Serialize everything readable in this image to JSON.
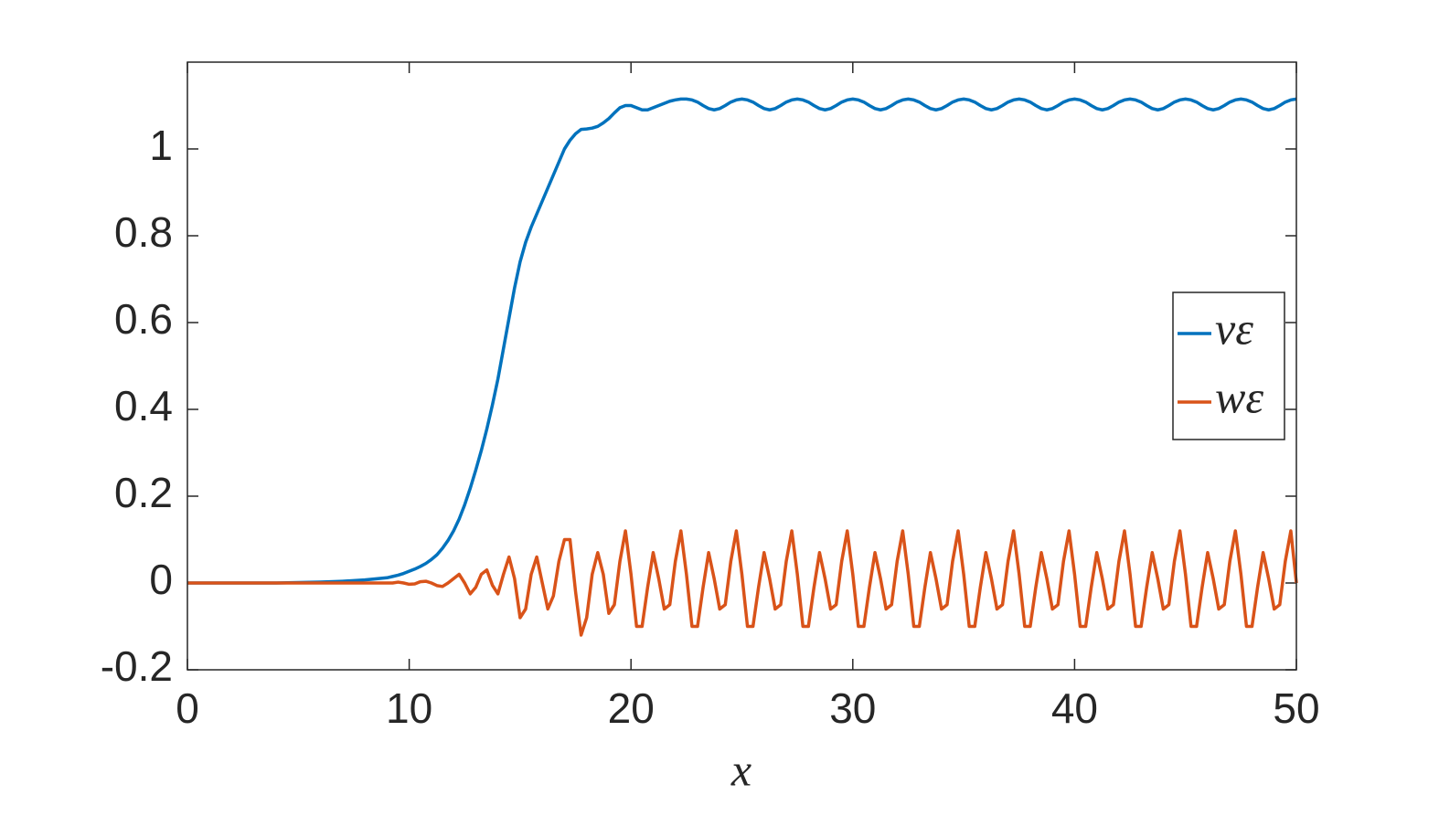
{
  "chart_data": {
    "type": "line",
    "xlabel": "x",
    "xlim": [
      0,
      50
    ],
    "xticks": [
      0,
      10,
      20,
      30,
      40,
      50
    ],
    "ylim": [
      -0.2,
      1.2
    ],
    "yticks": [
      -0.2,
      0,
      0.2,
      0.4,
      0.6,
      0.8,
      1
    ],
    "legend": "right",
    "box": true,
    "x": [
      0,
      1,
      2,
      3,
      4,
      5,
      6,
      7,
      8,
      9,
      9.25,
      9.5,
      9.75,
      10,
      10.25,
      10.5,
      10.75,
      11,
      11.25,
      11.5,
      11.75,
      12,
      12.25,
      12.5,
      12.75,
      13,
      13.25,
      13.5,
      13.75,
      14,
      14.25,
      14.5,
      14.75,
      15,
      15.25,
      15.5,
      15.75,
      16,
      16.25,
      16.5,
      16.75,
      17,
      17.25,
      17.5,
      17.75,
      18,
      18.25,
      18.5,
      18.75,
      19,
      19.25,
      19.5,
      19.75,
      20,
      20.25,
      20.5,
      20.75,
      21,
      21.25,
      21.5,
      21.75,
      22,
      22.25,
      22.5,
      22.75,
      23,
      23.25,
      23.5,
      23.75,
      24,
      24.25,
      24.5,
      24.75,
      25,
      25.25,
      25.5,
      25.75,
      26,
      26.25,
      26.5,
      26.75,
      27,
      27.25,
      27.5,
      27.75,
      28,
      28.25,
      28.5,
      28.75,
      29,
      29.25,
      29.5,
      29.75,
      30,
      30.25,
      30.5,
      30.75,
      31,
      31.25,
      31.5,
      31.75,
      32,
      32.25,
      32.5,
      32.75,
      33,
      33.25,
      33.5,
      33.75,
      34,
      34.25,
      34.5,
      34.75,
      35,
      35.25,
      35.5,
      35.75,
      36,
      36.25,
      36.5,
      36.75,
      37,
      37.25,
      37.5,
      37.75,
      38,
      38.25,
      38.5,
      38.75,
      39,
      39.25,
      39.5,
      39.75,
      40,
      40.25,
      40.5,
      40.75,
      41,
      41.25,
      41.5,
      41.75,
      42,
      42.25,
      42.5,
      42.75,
      43,
      43.25,
      43.5,
      43.75,
      44,
      44.25,
      44.5,
      44.75,
      45,
      45.25,
      45.5,
      45.75,
      46,
      46.25,
      46.5,
      46.75,
      47,
      47.25,
      47.5,
      47.75,
      48,
      48.25,
      48.5,
      48.75,
      49,
      49.25,
      49.5,
      49.75,
      50
    ],
    "series": [
      {
        "name": "vε",
        "color": "#0072BD",
        "values": [
          0,
          0,
          0,
          0,
          0,
          0.001,
          0.002,
          0.004,
          0.007,
          0.012,
          0.015,
          0.018,
          0.022,
          0.027,
          0.032,
          0.038,
          0.045,
          0.054,
          0.065,
          0.08,
          0.098,
          0.12,
          0.147,
          0.18,
          0.218,
          0.26,
          0.305,
          0.355,
          0.41,
          0.47,
          0.54,
          0.61,
          0.68,
          0.74,
          0.785,
          0.82,
          0.85,
          0.88,
          0.91,
          0.94,
          0.97,
          1.0,
          1.02,
          1.035,
          1.045,
          1.046,
          1.048,
          1.052,
          1.06,
          1.07,
          1.083,
          1.095,
          1.1,
          1.1,
          1.095,
          1.09,
          1.09,
          1.095,
          1.1,
          1.105,
          1.11,
          1.113,
          1.115,
          1.115,
          1.113,
          1.108,
          1.1,
          1.093,
          1.09,
          1.093,
          1.1,
          1.108,
          1.113,
          1.115,
          1.113,
          1.108,
          1.1,
          1.093,
          1.09,
          1.093,
          1.1,
          1.108,
          1.113,
          1.115,
          1.113,
          1.108,
          1.1,
          1.093,
          1.09,
          1.093,
          1.1,
          1.108,
          1.113,
          1.115,
          1.113,
          1.108,
          1.1,
          1.093,
          1.09,
          1.093,
          1.1,
          1.108,
          1.113,
          1.115,
          1.113,
          1.108,
          1.1,
          1.093,
          1.09,
          1.093,
          1.1,
          1.108,
          1.113,
          1.115,
          1.113,
          1.108,
          1.1,
          1.093,
          1.09,
          1.093,
          1.1,
          1.108,
          1.113,
          1.115,
          1.113,
          1.108,
          1.1,
          1.093,
          1.09,
          1.093,
          1.1,
          1.108,
          1.113,
          1.115,
          1.113,
          1.108,
          1.1,
          1.093,
          1.09,
          1.093,
          1.1,
          1.108,
          1.113,
          1.115,
          1.113,
          1.108,
          1.1,
          1.093,
          1.09,
          1.093,
          1.1,
          1.108,
          1.113,
          1.115,
          1.113,
          1.108,
          1.1,
          1.093,
          1.09,
          1.093,
          1.1,
          1.108,
          1.113,
          1.115,
          1.113,
          1.108,
          1.1,
          1.093,
          1.09,
          1.093,
          1.1,
          1.108,
          1.113,
          1.115
        ]
      },
      {
        "name": "wε",
        "color": "#D95319",
        "values": [
          0,
          0,
          0,
          0,
          0,
          0,
          0,
          0,
          0,
          0,
          0,
          0.002,
          0,
          -0.003,
          -0.002,
          0.003,
          0.004,
          0,
          -0.006,
          -0.008,
          0,
          0.01,
          0.02,
          0,
          -0.025,
          -0.01,
          0.02,
          0.03,
          -0.005,
          -0.025,
          0.02,
          0.06,
          0.01,
          -0.08,
          -0.06,
          0.02,
          0.06,
          0,
          -0.06,
          -0.03,
          0.05,
          0.1,
          0.1,
          -0.02,
          -0.12,
          -0.08,
          0.02,
          0.07,
          0.02,
          -0.07,
          -0.05,
          0.05,
          0.12,
          0.02,
          -0.1,
          -0.1,
          -0.01,
          0.07,
          0.01,
          -0.06,
          -0.05,
          0.05,
          0.12,
          0.02,
          -0.1,
          -0.1,
          -0.01,
          0.07,
          0.01,
          -0.06,
          -0.05,
          0.05,
          0.12,
          0.02,
          -0.1,
          -0.1,
          -0.01,
          0.07,
          0.01,
          -0.06,
          -0.05,
          0.05,
          0.12,
          0.02,
          -0.1,
          -0.1,
          -0.01,
          0.07,
          0.01,
          -0.06,
          -0.05,
          0.05,
          0.12,
          0.02,
          -0.1,
          -0.1,
          -0.01,
          0.07,
          0.01,
          -0.06,
          -0.05,
          0.05,
          0.12,
          0.02,
          -0.1,
          -0.1,
          -0.01,
          0.07,
          0.01,
          -0.06,
          -0.05,
          0.05,
          0.12,
          0.02,
          -0.1,
          -0.1,
          -0.01,
          0.07,
          0.01,
          -0.06,
          -0.05,
          0.05,
          0.12,
          0.02,
          -0.1,
          -0.1,
          -0.01,
          0.07,
          0.01,
          -0.06,
          -0.05,
          0.05,
          0.12,
          0.02,
          -0.1,
          -0.1,
          -0.01,
          0.07,
          0.01,
          -0.06,
          -0.05,
          0.05,
          0.12,
          0.02,
          -0.1,
          -0.1,
          -0.01,
          0.07,
          0.01,
          -0.06,
          -0.05,
          0.05,
          0.12,
          0.02,
          -0.1,
          -0.1,
          -0.01,
          0.07,
          0.01,
          -0.06,
          -0.05,
          0.05,
          0.12,
          0.02,
          -0.1,
          -0.1,
          -0.01,
          0.07,
          0.01,
          -0.06,
          -0.05,
          0.05,
          0.12,
          0
        ]
      }
    ]
  }
}
